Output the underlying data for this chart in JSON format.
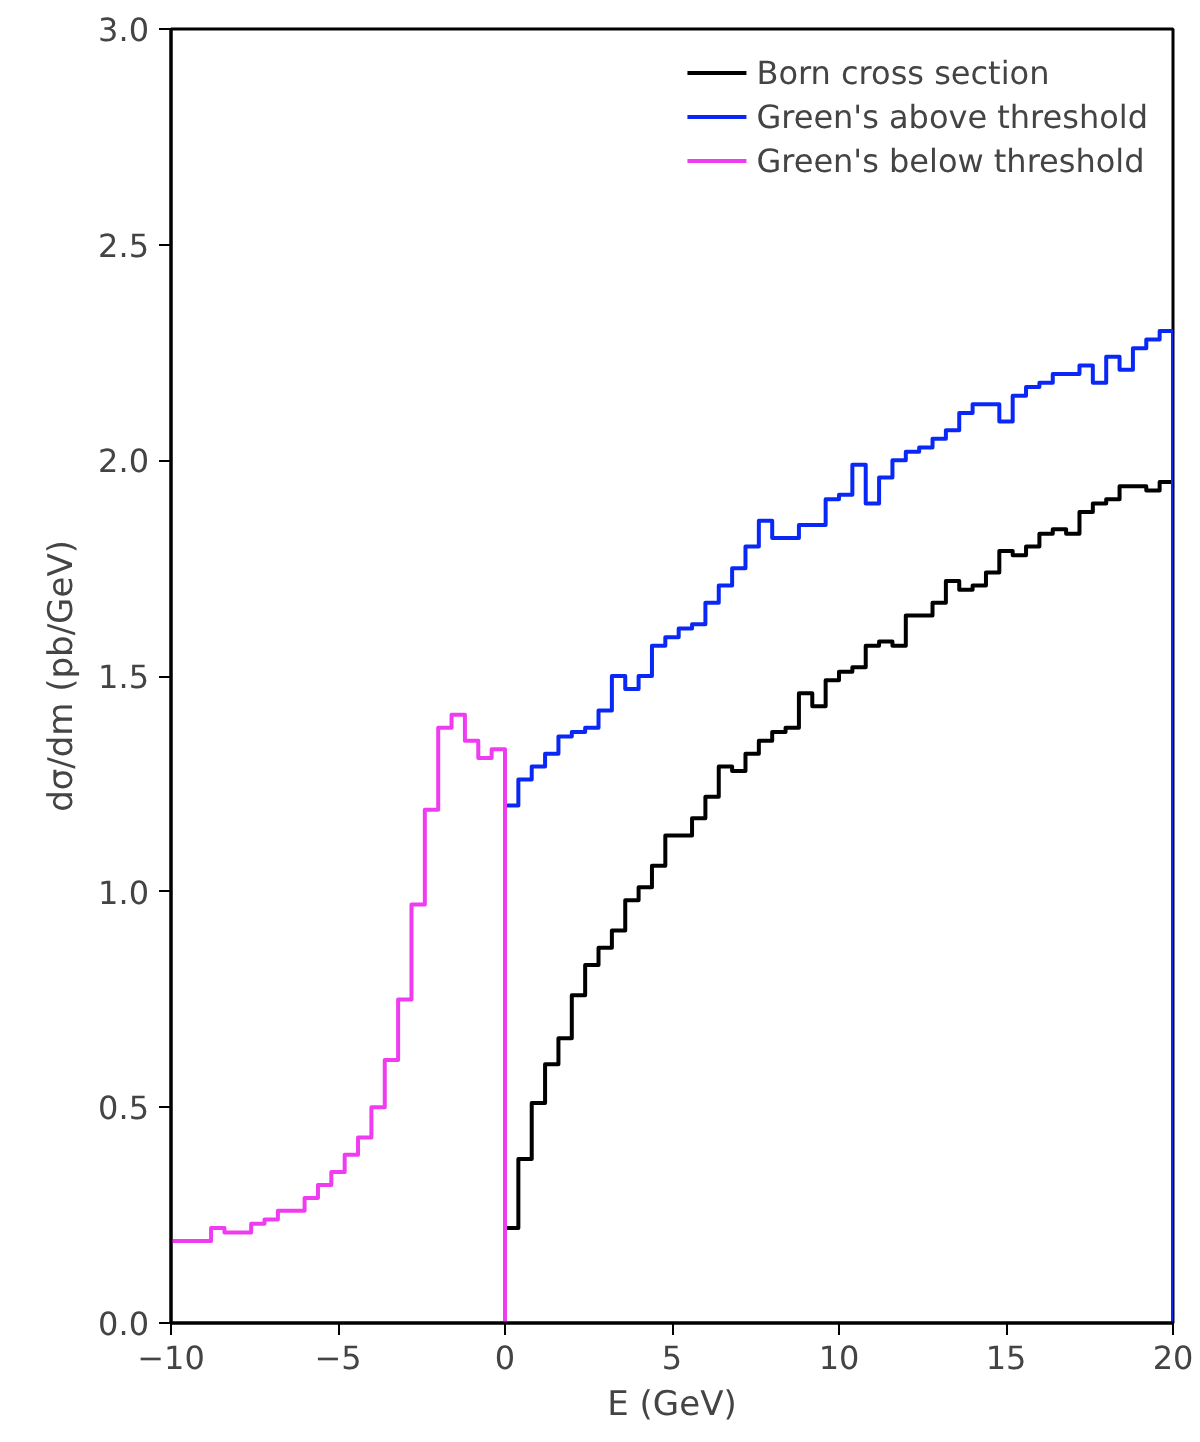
{
  "chart_data": {
    "type": "step",
    "xlabel": "E (GeV)",
    "ylabel": "dσ/dm (pb/GeV)",
    "xlim": [
      -10,
      20
    ],
    "ylim": [
      0,
      3.0
    ],
    "xticks": [
      {
        "value": -10,
        "label": "−10"
      },
      {
        "value": -5,
        "label": "−5"
      },
      0,
      5,
      10,
      15,
      20
    ],
    "yticks": [
      {
        "value": 0,
        "label": "0.0"
      },
      0.5,
      {
        "value": 1,
        "label": "1.0"
      },
      1.5,
      {
        "value": 2,
        "label": "2.0"
      },
      2.5,
      {
        "value": 3,
        "label": "3.0"
      }
    ],
    "grid": false,
    "legend": "top right",
    "line_style": "solid",
    "series": [
      {
        "name": "Born cross section",
        "color": "#000000",
        "x": [
          0,
          0.4,
          0.8,
          1.2,
          1.6,
          2.0,
          2.4,
          2.8,
          3.2,
          3.6,
          4.0,
          4.4,
          4.8,
          5.2,
          5.6,
          6.0,
          6.4,
          6.8,
          7.2,
          7.6,
          8.0,
          8.4,
          8.8,
          9.2,
          9.6,
          10.0,
          10.4,
          10.8,
          11.2,
          11.6,
          12.0,
          12.4,
          12.8,
          13.2,
          13.6,
          14.0,
          14.4,
          14.8,
          15.2,
          15.6,
          16.0,
          16.4,
          16.8,
          17.2,
          17.6,
          18.0,
          18.4,
          18.8,
          19.2,
          19.6,
          20.0
        ],
        "values": [
          0.22,
          0.38,
          0.51,
          0.6,
          0.66,
          0.76,
          0.83,
          0.87,
          0.91,
          0.98,
          1.01,
          1.06,
          1.13,
          1.13,
          1.17,
          1.22,
          1.29,
          1.28,
          1.32,
          1.35,
          1.37,
          1.38,
          1.46,
          1.43,
          1.49,
          1.51,
          1.52,
          1.57,
          1.58,
          1.57,
          1.64,
          1.64,
          1.67,
          1.72,
          1.7,
          1.71,
          1.74,
          1.79,
          1.78,
          1.8,
          1.83,
          1.84,
          1.83,
          1.88,
          1.9,
          1.91,
          1.94,
          1.94,
          1.93,
          1.95,
          0
        ]
      },
      {
        "name": "Green's above threshold",
        "color": "#0a28f5",
        "x": [
          0,
          0.4,
          0.8,
          1.2,
          1.6,
          2.0,
          2.4,
          2.8,
          3.2,
          3.6,
          4.0,
          4.4,
          4.8,
          5.2,
          5.6,
          6.0,
          6.4,
          6.8,
          7.2,
          7.6,
          8.0,
          8.4,
          8.8,
          9.2,
          9.6,
          10.0,
          10.4,
          10.8,
          11.2,
          11.6,
          12.0,
          12.4,
          12.8,
          13.2,
          13.6,
          14.0,
          14.4,
          14.8,
          15.2,
          15.6,
          16.0,
          16.4,
          16.8,
          17.2,
          17.6,
          18.0,
          18.4,
          18.8,
          19.2,
          19.6,
          20.0
        ],
        "values": [
          1.2,
          1.26,
          1.29,
          1.32,
          1.36,
          1.37,
          1.38,
          1.42,
          1.5,
          1.47,
          1.5,
          1.57,
          1.59,
          1.61,
          1.62,
          1.67,
          1.71,
          1.75,
          1.8,
          1.86,
          1.82,
          1.82,
          1.85,
          1.85,
          1.91,
          1.92,
          1.99,
          1.9,
          1.96,
          2.0,
          2.02,
          2.03,
          2.05,
          2.07,
          2.11,
          2.13,
          2.13,
          2.09,
          2.15,
          2.17,
          2.18,
          2.2,
          2.2,
          2.22,
          2.18,
          2.24,
          2.21,
          2.26,
          2.28,
          2.3,
          0
        ]
      },
      {
        "name": "Green's below threshold",
        "color": "#f03cf0",
        "x": [
          -10,
          -9.6,
          -9.2,
          -8.8,
          -8.4,
          -8.0,
          -7.6,
          -7.2,
          -6.8,
          -6.4,
          -6.0,
          -5.6,
          -5.2,
          -4.8,
          -4.4,
          -4.0,
          -3.6,
          -3.2,
          -2.8,
          -2.4,
          -2.0,
          -1.6,
          -1.2,
          -0.8,
          -0.4,
          0
        ],
        "values": [
          0.19,
          0.19,
          0.19,
          0.22,
          0.21,
          0.21,
          0.23,
          0.24,
          0.26,
          0.26,
          0.29,
          0.32,
          0.35,
          0.39,
          0.43,
          0.5,
          0.61,
          0.75,
          0.97,
          1.19,
          1.38,
          1.41,
          1.35,
          1.31,
          1.33,
          0
        ]
      }
    ]
  }
}
